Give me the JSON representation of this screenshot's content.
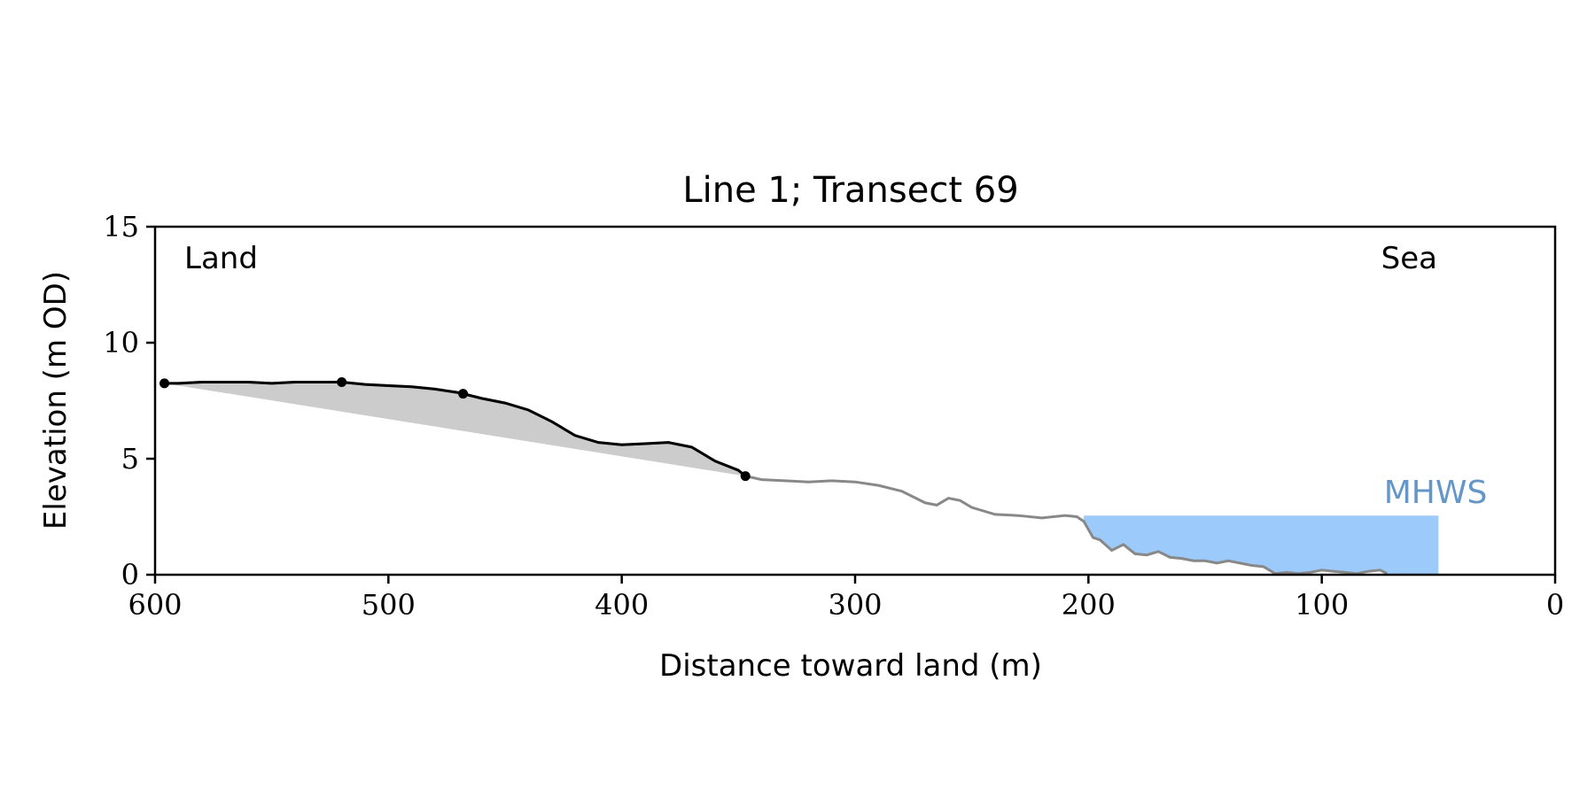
{
  "chart_data": {
    "type": "line",
    "title": "Line 1; Transect 69",
    "xlabel": "Distance toward land (m)",
    "ylabel": "Elevation (m OD)",
    "xlim": [
      600,
      0
    ],
    "ylim": [
      0,
      15
    ],
    "x_ticks": [
      600,
      500,
      400,
      300,
      200,
      100,
      0
    ],
    "y_ticks": [
      0,
      5,
      10,
      15
    ],
    "grid": false,
    "annotations": {
      "land": "Land",
      "sea": "Sea",
      "mhws": "MHWS"
    },
    "mhws": {
      "elevation": 2.55,
      "x_from": 202,
      "x_to": 50,
      "color": "#9ccbfb",
      "label_color": "#6497c8"
    },
    "profile_color": "#888888",
    "feature_color": "#000000",
    "fill_color": "#cccccc",
    "profile": {
      "x": [
        596,
        590,
        580,
        570,
        560,
        550,
        540,
        530,
        520,
        510,
        500,
        490,
        480,
        470,
        468,
        460,
        450,
        440,
        430,
        420,
        410,
        400,
        390,
        380,
        370,
        360,
        350,
        347,
        340,
        330,
        320,
        310,
        300,
        290,
        280,
        270,
        265,
        260,
        255,
        250,
        240,
        230,
        220,
        210,
        205,
        202,
        198,
        195,
        190,
        185,
        180,
        175,
        170,
        165,
        160,
        155,
        150,
        145,
        140,
        135,
        130,
        125,
        120,
        115,
        110,
        105,
        100,
        95,
        90,
        85,
        80,
        75,
        72
      ],
      "y": [
        8.25,
        8.25,
        8.3,
        8.3,
        8.3,
        8.25,
        8.3,
        8.3,
        8.3,
        8.2,
        8.15,
        8.1,
        8.0,
        7.85,
        7.8,
        7.6,
        7.4,
        7.1,
        6.6,
        6.0,
        5.7,
        5.6,
        5.65,
        5.7,
        5.5,
        4.9,
        4.5,
        4.25,
        4.1,
        4.05,
        4.0,
        4.05,
        4.0,
        3.85,
        3.6,
        3.1,
        3.0,
        3.3,
        3.2,
        2.9,
        2.6,
        2.55,
        2.45,
        2.55,
        2.5,
        2.3,
        1.6,
        1.5,
        1.05,
        1.3,
        0.9,
        0.85,
        1.0,
        0.75,
        0.7,
        0.6,
        0.6,
        0.5,
        0.6,
        0.5,
        0.4,
        0.35,
        0.05,
        0.1,
        0.05,
        0.1,
        0.2,
        0.15,
        0.1,
        0.05,
        0.15,
        0.2,
        0.05
      ]
    },
    "feature_points": [
      {
        "x": 596,
        "y": 8.25
      },
      {
        "x": 520,
        "y": 8.3
      },
      {
        "x": 468,
        "y": 7.8
      },
      {
        "x": 347,
        "y": 4.25
      }
    ]
  }
}
